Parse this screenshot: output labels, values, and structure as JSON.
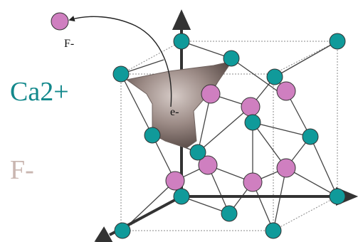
{
  "labels": {
    "ejected_ion": "F-",
    "electron": "e-",
    "legend_cation": "Ca2+",
    "legend_anion": "F-"
  },
  "colors": {
    "cation": "#109a9a",
    "anion": "#cf7fc0",
    "legend_cation_text": "#12888b",
    "legend_anion_text": "#c9b6b0",
    "vacancy_cloud": "#8e7d78",
    "axis": "#333333",
    "bond": "#444444",
    "cube_edge": "#777777"
  },
  "icons": {
    "ejected_ion": "fluoride-ion-sphere",
    "displacement_path": "curved-arrow",
    "electron_cloud": "f-center-trapped-electron"
  }
}
